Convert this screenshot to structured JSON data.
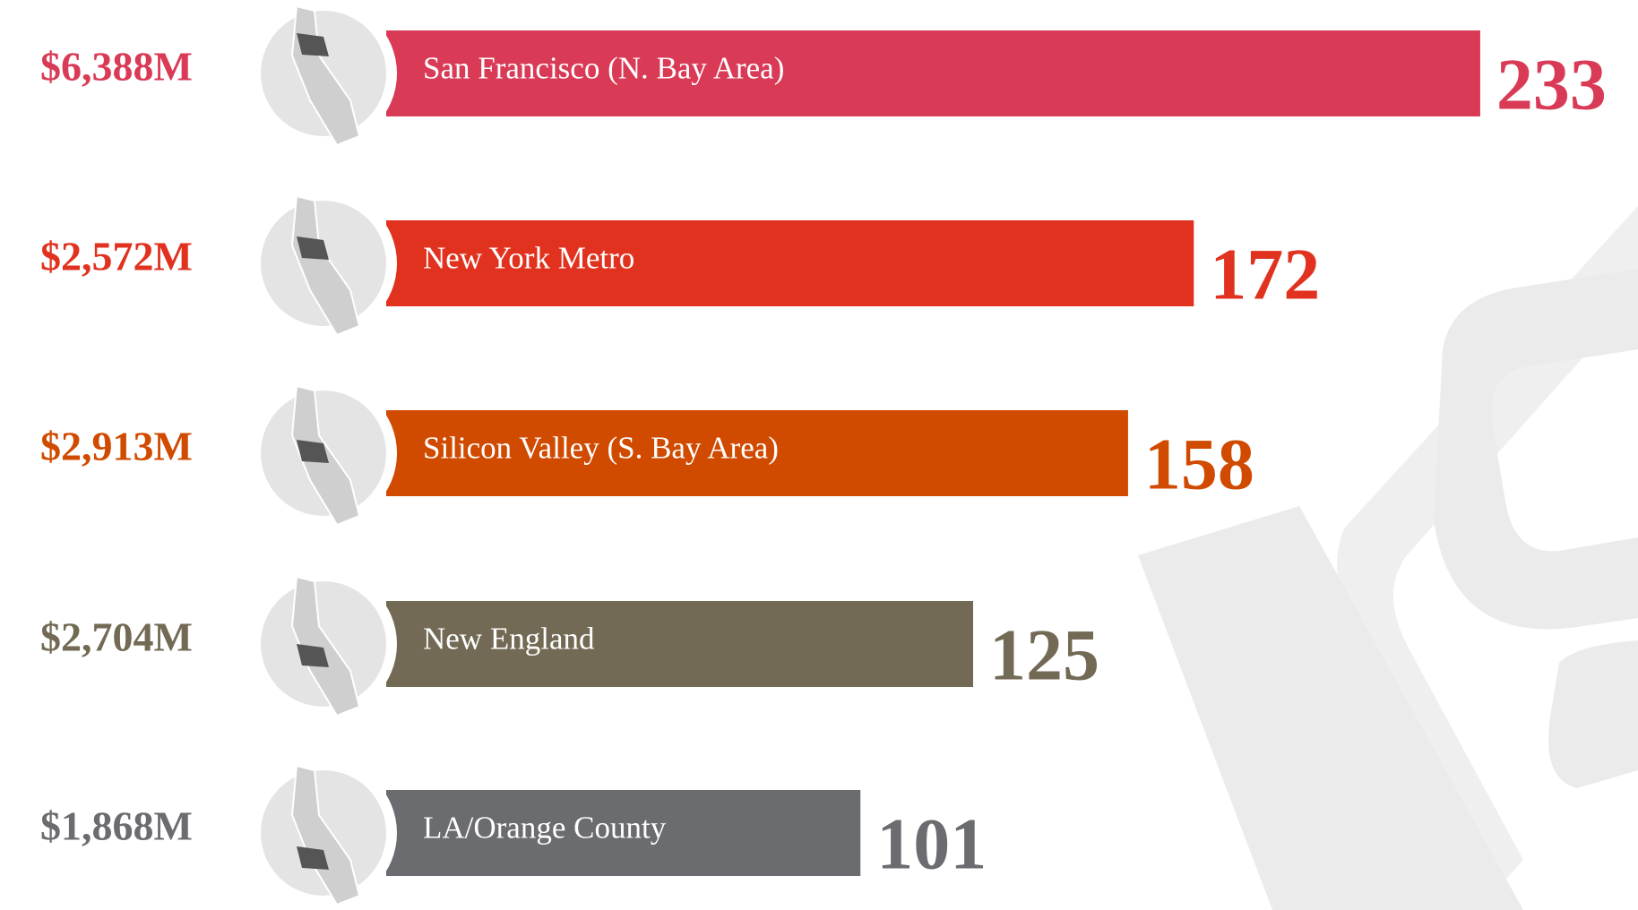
{
  "chart_data": {
    "type": "bar",
    "categories": [
      "San Francisco (N. Bay Area)",
      "New York Metro",
      "Silicon Valley (S. Bay Area)",
      "New England",
      "LA/Orange County"
    ],
    "values": [
      233,
      172,
      158,
      125,
      101
    ],
    "amounts": [
      "$6,388M",
      "$2,572M",
      "$2,913M",
      "$2,704M",
      "$1,868M"
    ],
    "colors": [
      "#d93a56",
      "#e0321f",
      "#d04a00",
      "#726a54",
      "#6b6c70"
    ]
  }
}
